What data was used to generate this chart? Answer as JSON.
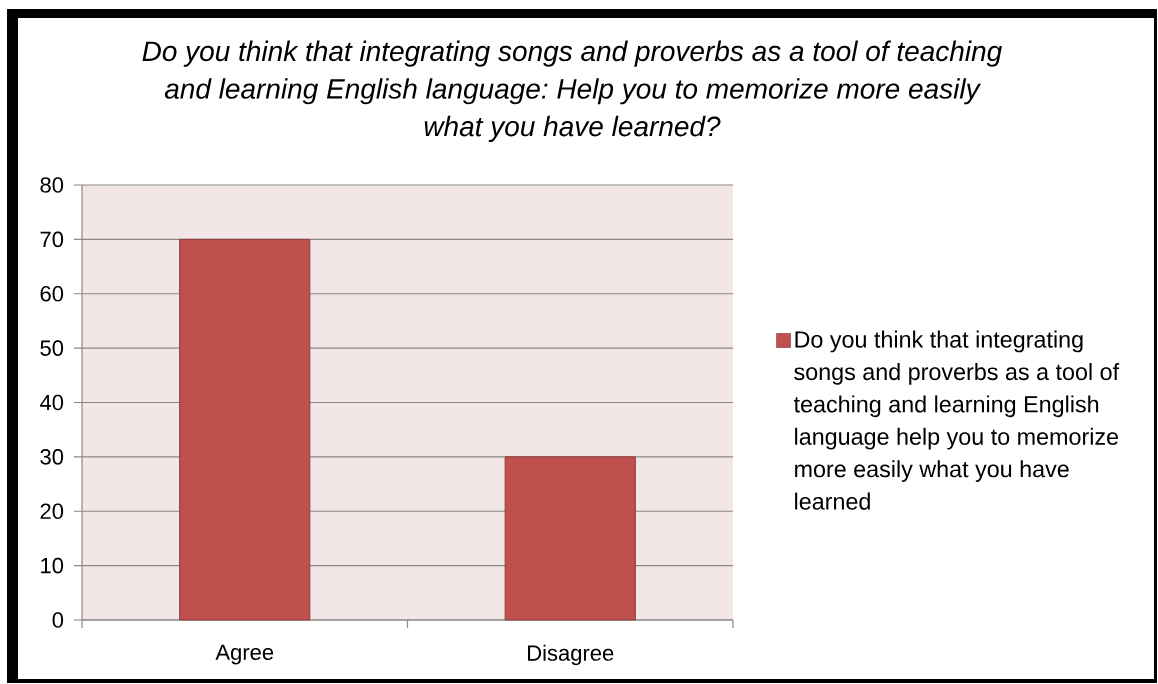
{
  "chart_data": {
    "type": "bar",
    "title": "Do you think that integrating songs and proverbs as a tool of teaching and learning English language: Help you to memorize more easily what you have learned?",
    "categories": [
      "Agree",
      "Disagree"
    ],
    "series": [
      {
        "name": "Do you think that integrating songs and proverbs as a tool of teaching and learning English language help you to memorize more easily what you have learned",
        "color": "#c0504d",
        "values": [
          70,
          30
        ]
      }
    ],
    "ylim": [
      0,
      80
    ],
    "yticks": [
      0,
      10,
      20,
      30,
      40,
      50,
      60,
      70,
      80
    ],
    "grid": "y",
    "legend": "right"
  }
}
